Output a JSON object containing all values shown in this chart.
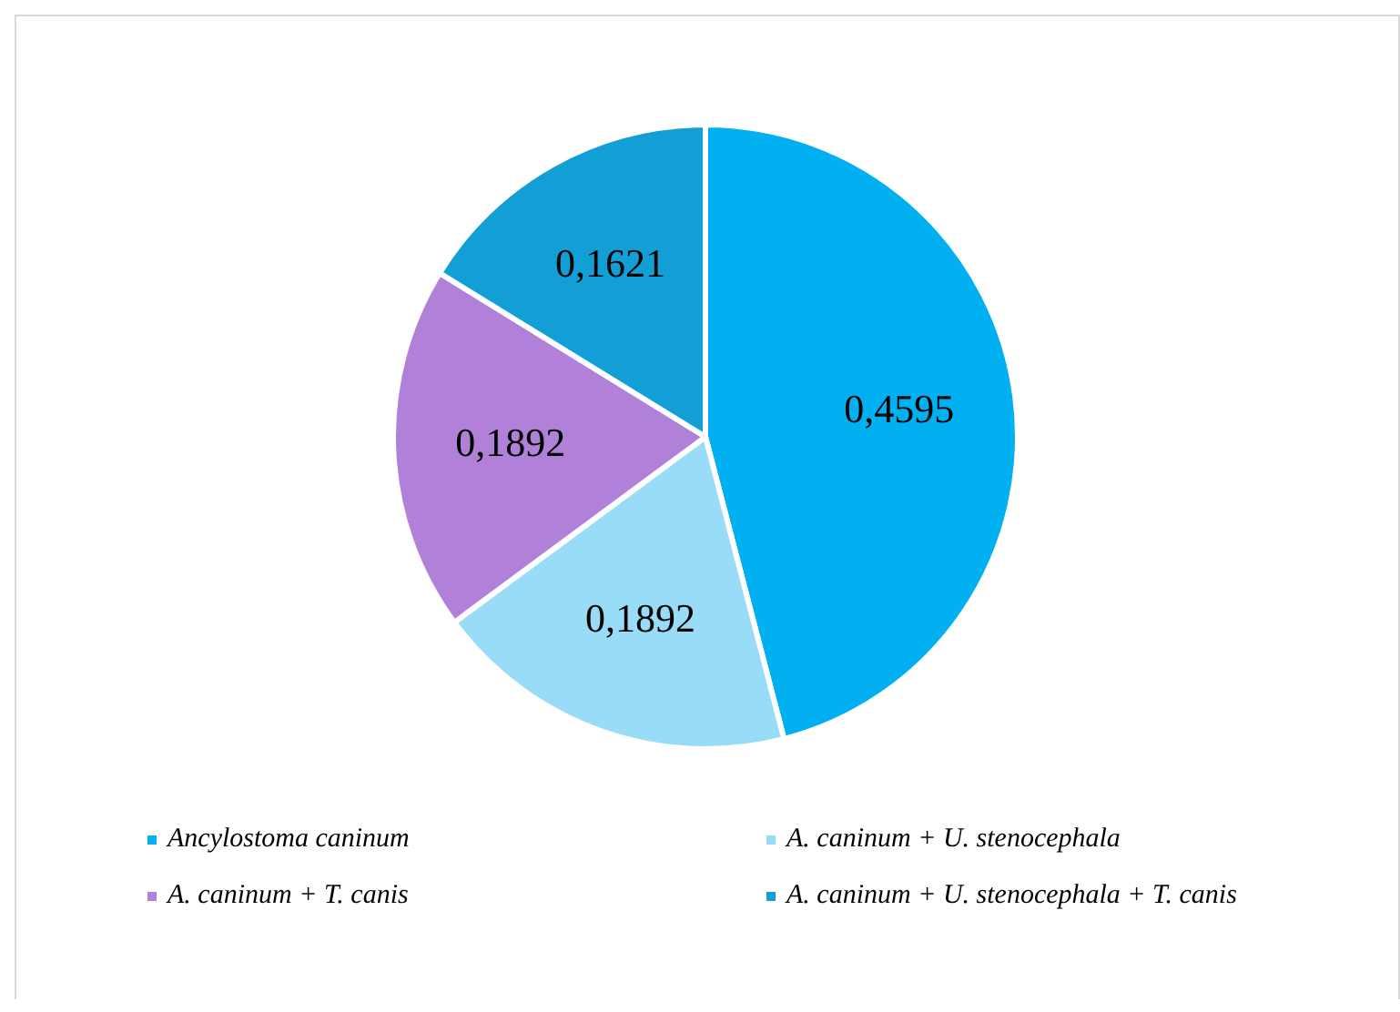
{
  "chart_data": {
    "type": "pie",
    "categories": [
      "Ancylostoma caninum",
      "A. caninum + U. stenocephala",
      "A. caninum + T. canis",
      "A. caninum + U. stenocephala + T. canis"
    ],
    "values": [
      0.4595,
      0.1892,
      0.1892,
      0.1621
    ],
    "value_labels": [
      "0,4595",
      "0,1892",
      "0,1892",
      "0,1621"
    ],
    "colors": [
      "#00b0f0",
      "#99dcf7",
      "#b180d8",
      "#129fd6"
    ],
    "legend": "bottom"
  }
}
